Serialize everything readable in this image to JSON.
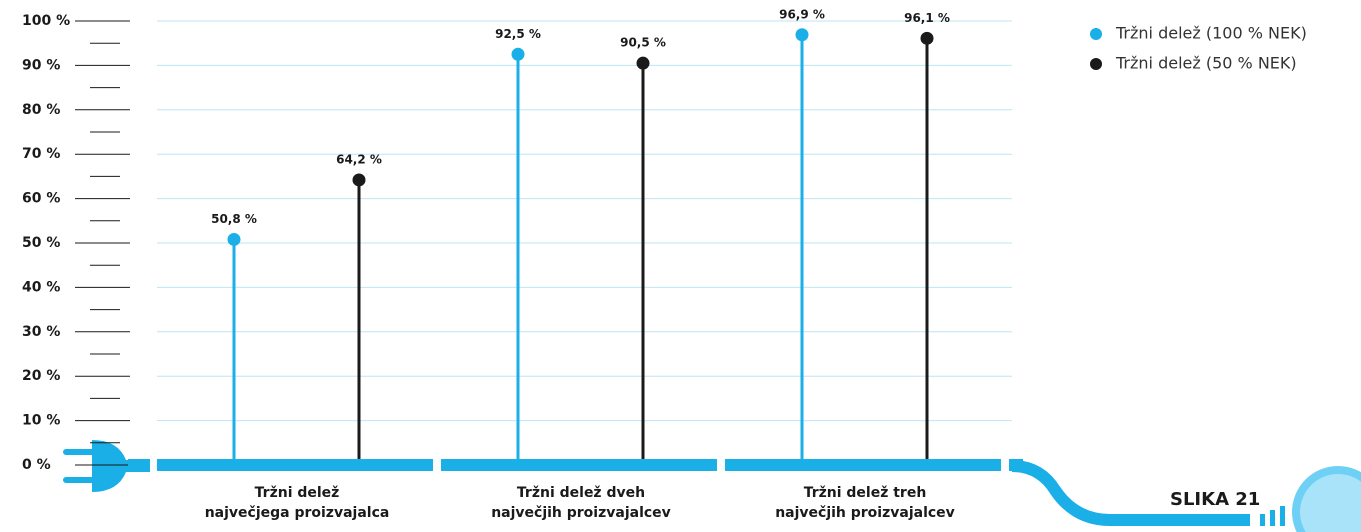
{
  "chart_data": {
    "type": "lollipop",
    "categories": [
      "Tržni delež\nnajvečjega proizvajalca",
      "Tržni delež dveh\nnajvečjih proizvajalcev",
      "Tržni delež treh\nnajvečjih proizvajalcev"
    ],
    "series": [
      {
        "name": "Tržni delež (100 % NEK)",
        "color": "#1aafe6",
        "values": [
          50.8,
          92.5,
          96.9
        ],
        "value_labels": [
          "50,8 %",
          "92,5 %",
          "96,9 %"
        ]
      },
      {
        "name": "Tržni delež (50 % NEK)",
        "color": "#1a1a1a",
        "values": [
          64.2,
          90.5,
          96.1
        ],
        "value_labels": [
          "64,2 %",
          "90,5 %",
          "96,1 %"
        ]
      }
    ],
    "ylim": [
      0,
      100
    ],
    "yticks": [
      {
        "value": 0,
        "label": "0 %"
      },
      {
        "value": 10,
        "label": "10 %"
      },
      {
        "value": 20,
        "label": "20 %"
      },
      {
        "value": 30,
        "label": "30 %"
      },
      {
        "value": 40,
        "label": "40 %"
      },
      {
        "value": 50,
        "label": "50 %"
      },
      {
        "value": 60,
        "label": "60 %"
      },
      {
        "value": 70,
        "label": "70 %"
      },
      {
        "value": 80,
        "label": "80 %"
      },
      {
        "value": 90,
        "label": "90 %"
      },
      {
        "value": 100,
        "label": "100 %"
      }
    ],
    "grid": true,
    "legend": "top-right",
    "figure_label": "SLIKA 21"
  }
}
